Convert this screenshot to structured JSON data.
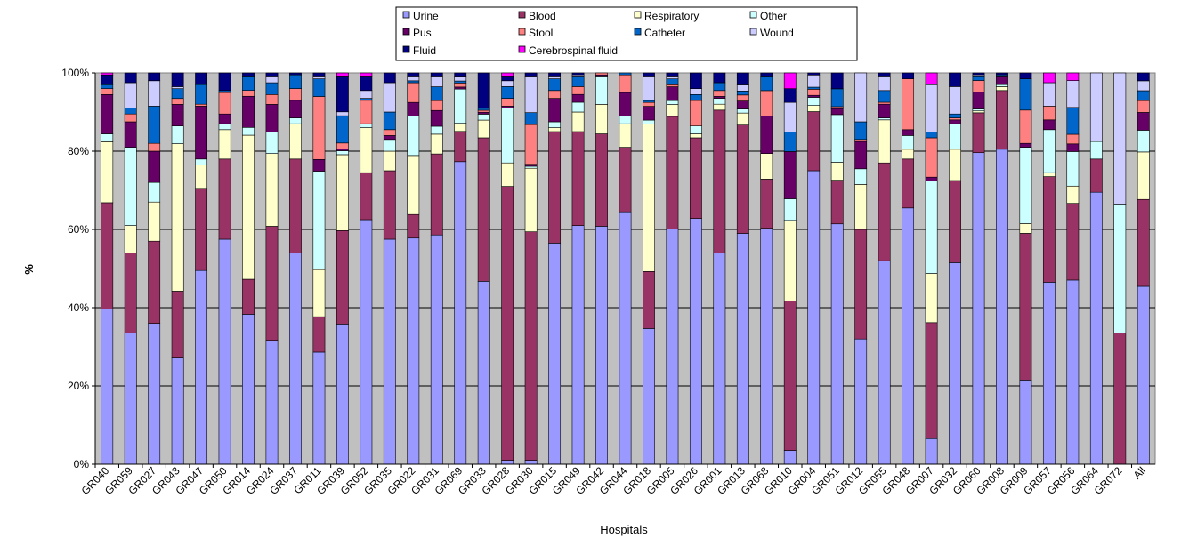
{
  "chart_data": {
    "type": "bar",
    "stacked": true,
    "percent_stacked": true,
    "title": "",
    "xlabel": "Hospitals",
    "ylabel": "%",
    "ylim": [
      0,
      100
    ],
    "y_ticks": [
      "0%",
      "20%",
      "40%",
      "60%",
      "80%",
      "100%"
    ],
    "grid": "horizontal",
    "legend_position": "top",
    "plot_background": "#C0C0C0",
    "categories": [
      "GR040",
      "GR059",
      "GR027",
      "GR043",
      "GR047",
      "GR050",
      "GR014",
      "GR024",
      "GR037",
      "GR011",
      "GR039",
      "GR052",
      "GR035",
      "GR022",
      "GR031",
      "GR069",
      "GR033",
      "GR028",
      "GR030",
      "GR015",
      "GR049",
      "GR042",
      "GR044",
      "GR018",
      "GR005",
      "GR026",
      "GR001",
      "GR013",
      "GR068",
      "GR010",
      "GR004",
      "GR051",
      "GR012",
      "GR055",
      "GR048",
      "GR007",
      "GR032",
      "GR060",
      "GR008",
      "GR009",
      "GR057",
      "GR056",
      "GR064",
      "GR072",
      "All"
    ],
    "series": [
      {
        "name": "Urine",
        "color": "#9999FF",
        "values": [
          39.5,
          33.5,
          36,
          27,
          49.5,
          57.5,
          38.5,
          31.5,
          54,
          28.5,
          36,
          62.5,
          57.5,
          57.5,
          58,
          75,
          46.5,
          1,
          1,
          56.5,
          61,
          60.5,
          64.5,
          34.5,
          59.5,
          62.5,
          54,
          57.5,
          60,
          3.5,
          72,
          60.5,
          32,
          52,
          65.5,
          6.5,
          51.5,
          82,
          80.5,
          21.5,
          46.5,
          48,
          69.5,
          0,
          45
        ]
      },
      {
        "name": "Blood",
        "color": "#993366",
        "values": [
          27,
          20.5,
          21,
          17,
          21,
          20.5,
          9,
          29,
          24,
          9,
          24,
          12,
          17.5,
          6,
          20.5,
          7.5,
          36.5,
          70,
          57.5,
          28.5,
          24,
          23.5,
          16.5,
          14.5,
          28.5,
          20.5,
          36.5,
          27,
          12.5,
          38,
          14.5,
          11,
          28,
          25,
          12.5,
          29.5,
          21,
          10.5,
          15,
          37.5,
          27,
          20,
          8.5,
          33.5,
          22
        ]
      },
      {
        "name": "Respiratory",
        "color": "#FFFFCC",
        "values": [
          15.5,
          7,
          10,
          37.5,
          6,
          7.5,
          37,
          18.5,
          9,
          12,
          19.5,
          11.5,
          5,
          15,
          5,
          2,
          4.5,
          6,
          16,
          1,
          5,
          7.5,
          6,
          37.5,
          3,
          1,
          1.5,
          3,
          6.5,
          20.5,
          1.5,
          4.5,
          11.5,
          11,
          2.5,
          12.5,
          8,
          0.5,
          1,
          2.5,
          1,
          4.5,
          0,
          0,
          12
        ]
      },
      {
        "name": "Other",
        "color": "#CCFFFF",
        "values": [
          2,
          20,
          5,
          4.5,
          1.5,
          1.5,
          2,
          5.5,
          1.5,
          25,
          1,
          1,
          3,
          10,
          2,
          8.5,
          1.5,
          14,
          0.5,
          1.5,
          2.5,
          7,
          2,
          1,
          1,
          2,
          1.5,
          1,
          0,
          5.5,
          2,
          12,
          4,
          0.5,
          3.5,
          23.5,
          6.5,
          0.5,
          0.5,
          19.5,
          11,
          9,
          4.5,
          33,
          5.5
        ]
      },
      {
        "name": "Pus",
        "color": "#660066",
        "values": [
          10,
          6.5,
          8,
          5.5,
          13.5,
          2.5,
          8,
          7,
          4.5,
          3,
          0.5,
          0,
          1,
          3.5,
          4,
          0.5,
          0.5,
          0.5,
          0.5,
          6,
          2,
          0.5,
          6,
          3.5,
          3.5,
          0,
          0.5,
          2,
          9.5,
          12,
          0.5,
          1.5,
          7,
          3.5,
          1.5,
          1,
          1,
          4.5,
          2,
          1,
          2.5,
          2,
          0,
          0,
          4.5
        ]
      },
      {
        "name": "Stool",
        "color": "#FF8080",
        "values": [
          1.5,
          2,
          2,
          1.5,
          0.5,
          5.5,
          1.5,
          2.5,
          3,
          16,
          1.5,
          6,
          1.5,
          5,
          2.5,
          1,
          0.5,
          2,
          10,
          2,
          2,
          0.5,
          4.5,
          1,
          0.5,
          6.5,
          1.5,
          1.5,
          6.5,
          0,
          1.5,
          0.5,
          0.5,
          0.5,
          13,
          10,
          0.5,
          3,
          0,
          8.5,
          3.5,
          2.5,
          0,
          0,
          3
        ]
      },
      {
        "name": "Catheter",
        "color": "#0066CC",
        "values": [
          1,
          1.5,
          9.5,
          2.5,
          5,
          0.5,
          3.5,
          3,
          3.5,
          4.5,
          7,
          0.5,
          4.5,
          0.5,
          3.5,
          0.5,
          0.5,
          3,
          3,
          3,
          2.5,
          0,
          0.5,
          0.5,
          1.5,
          1.5,
          2,
          1,
          3.5,
          5,
          0.5,
          4.5,
          4.5,
          3,
          0,
          1.5,
          1,
          1,
          0.5,
          8,
          0,
          7,
          0,
          0,
          2.5
        ]
      },
      {
        "name": "Wound",
        "color": "#CCCCFF",
        "values": [
          0,
          6.5,
          6.5,
          0.5,
          0,
          0,
          0,
          1.5,
          0,
          0.5,
          1,
          2,
          7.5,
          1,
          2.5,
          1,
          0,
          1.5,
          9,
          0.5,
          0.5,
          0,
          0,
          6,
          0.5,
          1.5,
          0,
          1.5,
          0,
          7.5,
          3,
          0,
          12.5,
          3.5,
          0,
          12,
          7,
          0.5,
          0,
          0,
          6,
          7,
          17.5,
          33.5,
          2.5
        ]
      },
      {
        "name": "Fluid",
        "color": "#000080",
        "values": [
          2.5,
          2.5,
          2,
          3.5,
          3,
          4.5,
          1,
          1,
          0.5,
          1,
          9,
          3.5,
          2.5,
          1,
          1,
          1,
          9,
          1,
          1,
          1,
          0.5,
          0,
          0,
          1,
          1,
          4,
          2.5,
          3,
          1,
          3.5,
          0.5,
          4,
          0,
          1,
          1.5,
          0,
          3.5,
          0.5,
          0.5,
          1.5,
          0,
          0,
          0,
          0,
          2
        ]
      },
      {
        "name": "Cerebrospinal fluid",
        "color": "#FF00FF",
        "values": [
          0.5,
          0,
          0,
          0,
          0,
          0,
          0,
          0,
          0,
          0,
          1,
          1,
          0,
          0,
          0,
          0,
          0,
          1,
          0,
          0,
          0,
          0,
          0,
          0,
          0,
          0,
          0,
          0,
          0,
          4,
          0,
          0,
          0,
          0,
          0,
          3,
          0,
          0,
          0,
          0,
          2.5,
          2,
          0,
          0,
          0
        ]
      }
    ]
  }
}
